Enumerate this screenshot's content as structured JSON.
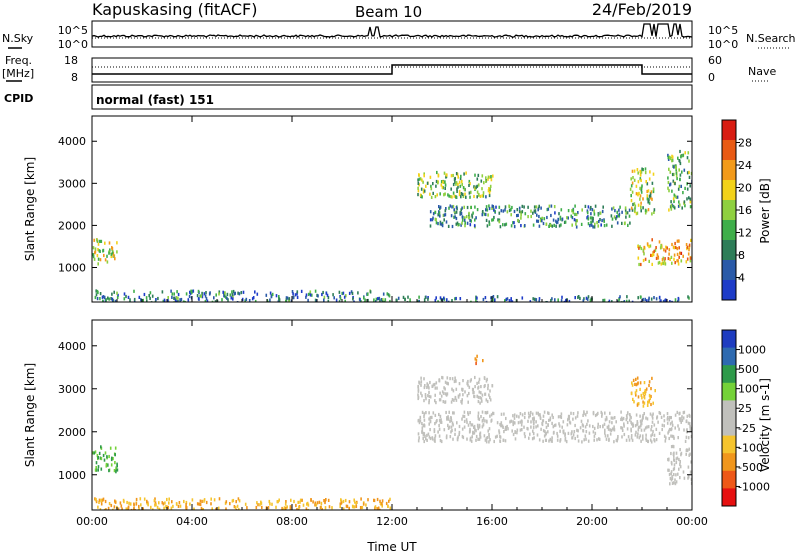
{
  "header": {
    "station": "Kapuskasing (fitACF)",
    "beam": "Beam 10",
    "date": "24/Feb/2019"
  },
  "noise_panel": {
    "left_label": "N.Sky",
    "right_label": "N.Search",
    "left_top_tick": "10^5",
    "left_bottom_tick": "10^0",
    "right_top_tick": "10^5",
    "right_bottom_tick": "10^0"
  },
  "freq_panel": {
    "label_line1": "Freq.",
    "label_line2": "[MHz]",
    "left_ticks": [
      "18",
      "8"
    ],
    "right_label": "Nave",
    "right_ticks": [
      "60",
      "0"
    ]
  },
  "cpid": {
    "label": "CPID",
    "value": "normal (fast) 151"
  },
  "colors": {
    "power_scale": [
      "#1e3cc8",
      "#2a5aa8",
      "#2e7d58",
      "#3fae4a",
      "#8fd040",
      "#f2d21a",
      "#f29a1a",
      "#e85a14",
      "#d81c12"
    ],
    "velocity_scale": [
      "#e61010",
      "#ee5818",
      "#f0961c",
      "#f5c42e",
      "#c0c0bc",
      "#c0c0bc",
      "#74d238",
      "#2e9a4a",
      "#2e6ab0",
      "#1e3cc0"
    ],
    "ground_scatter": "#c0c0bc"
  },
  "chart_data": [
    {
      "type": "heatmap",
      "title": "",
      "ylabel": "Slant Range [km]",
      "xlabel": "",
      "ylim": [
        180,
        4600
      ],
      "yticks": [
        "1000",
        "2000",
        "3000",
        "4000"
      ],
      "xticks": [
        "00:00",
        "04:00",
        "08:00",
        "12:00",
        "16:00",
        "20:00",
        "00:00"
      ],
      "colorbar": {
        "label": "Power [dB]",
        "ticks": [
          "4",
          "8",
          "12",
          "16",
          "20",
          "24",
          "28"
        ],
        "range": [
          0,
          32
        ]
      },
      "regions": [
        {
          "t0": 0.0,
          "t1": 1.0,
          "r0": 1100,
          "r1": 1700,
          "value": 18
        },
        {
          "t0": 0.0,
          "t1": 12.0,
          "r0": 200,
          "r1": 480,
          "value": 8
        },
        {
          "t0": 12.0,
          "t1": 24.0,
          "r0": 200,
          "r1": 350,
          "value": 6
        },
        {
          "t0": 13.0,
          "t1": 16.0,
          "r0": 2700,
          "r1": 3300,
          "value": 14
        },
        {
          "t0": 13.5,
          "t1": 21.5,
          "r0": 2000,
          "r1": 2500,
          "value": 10
        },
        {
          "t0": 21.5,
          "t1": 22.5,
          "r0": 2300,
          "r1": 3400,
          "value": 16
        },
        {
          "t0": 21.8,
          "t1": 24.0,
          "r0": 1100,
          "r1": 1700,
          "value": 22
        },
        {
          "t0": 23.0,
          "t1": 24.0,
          "r0": 2400,
          "r1": 3800,
          "value": 12
        }
      ]
    },
    {
      "type": "heatmap",
      "title": "",
      "ylabel": "Slant Range [km]",
      "xlabel": "Time UT",
      "ylim": [
        180,
        4600
      ],
      "yticks": [
        "1000",
        "2000",
        "3000",
        "4000"
      ],
      "xticks": [
        "00:00",
        "04:00",
        "08:00",
        "12:00",
        "16:00",
        "20:00",
        "00:00"
      ],
      "colorbar": {
        "label": "Velocity [m s-1]",
        "ticks": [
          "-1000",
          "-500",
          "-100",
          "-25",
          "25",
          "100",
          "500",
          "1000"
        ]
      },
      "regions": [
        {
          "t0": 0.0,
          "t1": 1.0,
          "r0": 1100,
          "r1": 1700,
          "value": 100
        },
        {
          "t0": 0.0,
          "t1": 12.0,
          "r0": 200,
          "r1": 480,
          "value": -100
        },
        {
          "t0": 13.0,
          "t1": 24.0,
          "r0": 1800,
          "r1": 2500,
          "value": 0
        },
        {
          "t0": 13.0,
          "t1": 16.0,
          "r0": 2700,
          "r1": 3300,
          "value": 0
        },
        {
          "t0": 15.3,
          "t1": 15.6,
          "r0": 3600,
          "r1": 3800,
          "value": -500
        },
        {
          "t0": 21.5,
          "t1": 22.5,
          "r0": 2600,
          "r1": 3300,
          "value": -100
        },
        {
          "t0": 23.0,
          "t1": 24.0,
          "r0": 800,
          "r1": 1700,
          "value": 0
        }
      ]
    }
  ]
}
